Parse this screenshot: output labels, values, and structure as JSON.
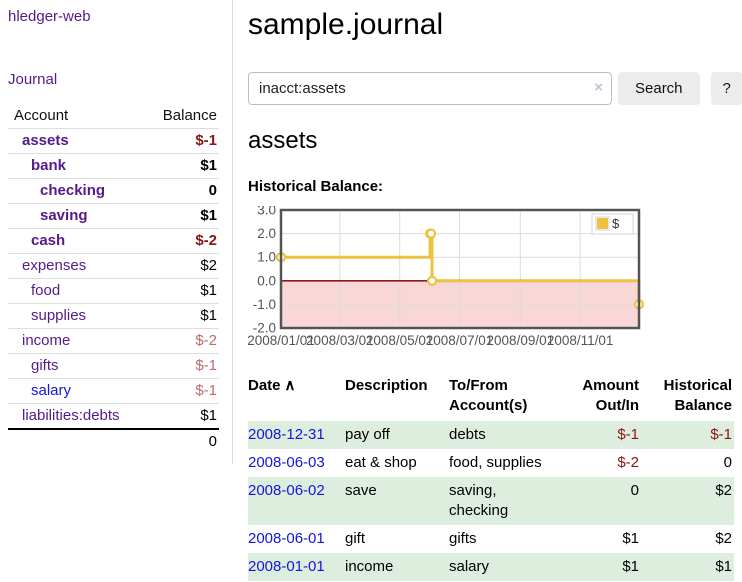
{
  "app": {
    "brand": "hledger-web",
    "nav_journal": "Journal"
  },
  "sidebar": {
    "columns": {
      "account": "Account",
      "balance": "Balance"
    },
    "accounts": [
      {
        "name": "assets",
        "level": 1,
        "bold": true,
        "name_color": "purple",
        "balance": "$-1",
        "balance_color": "neg-strong"
      },
      {
        "name": "bank",
        "level": 2,
        "bold": true,
        "name_color": "purple",
        "balance": "$1",
        "balance_color": "black"
      },
      {
        "name": "checking",
        "level": 3,
        "bold": true,
        "name_color": "purple",
        "balance": "0",
        "balance_color": "black"
      },
      {
        "name": "saving",
        "level": 3,
        "bold": true,
        "name_color": "purple",
        "balance": "$1",
        "balance_color": "black"
      },
      {
        "name": "cash",
        "level": 2,
        "bold": true,
        "name_color": "purple",
        "balance": "$-2",
        "balance_color": "neg-strong"
      },
      {
        "name": "expenses",
        "level": 1,
        "bold": false,
        "name_color": "purple",
        "balance": "$2",
        "balance_color": "black"
      },
      {
        "name": "food",
        "level": 2,
        "bold": false,
        "name_color": "purple",
        "balance": "$1",
        "balance_color": "black"
      },
      {
        "name": "supplies",
        "level": 2,
        "bold": false,
        "name_color": "purple",
        "balance": "$1",
        "balance_color": "black"
      },
      {
        "name": "income",
        "level": 1,
        "bold": false,
        "name_color": "purple",
        "balance": "$-2",
        "balance_color": "neg-muted"
      },
      {
        "name": "gifts",
        "level": 2,
        "bold": false,
        "name_color": "purple",
        "balance": "$-1",
        "balance_color": "neg-muted"
      },
      {
        "name": "salary",
        "level": 2,
        "bold": false,
        "name_color": "blue",
        "balance": "$-1",
        "balance_color": "neg-muted"
      },
      {
        "name": "liabilities:debts",
        "level": 1,
        "bold": false,
        "name_color": "purple",
        "balance": "$1",
        "balance_color": "black"
      }
    ],
    "total": "0"
  },
  "header": {
    "title": "sample.journal"
  },
  "search": {
    "value": "inacct:assets",
    "clear_icon": "×",
    "button": "Search",
    "help_button": "?"
  },
  "account_page": {
    "heading": "assets",
    "chart_label": "Historical Balance:"
  },
  "chart_data": {
    "type": "line",
    "style": "step",
    "legend": "$",
    "legend_position": "top-right",
    "series": [
      {
        "name": "$",
        "color": "#edc240",
        "points": [
          [
            "2008-01-01",
            1
          ],
          [
            "2008-06-01",
            2
          ],
          [
            "2008-06-02",
            2
          ],
          [
            "2008-06-03",
            0
          ],
          [
            "2008-12-31",
            -1
          ]
        ]
      }
    ],
    "ylim": [
      -2,
      3
    ],
    "yticks": [
      "3.0",
      "2.0",
      "1.0",
      "0.0",
      "-1.0",
      "-2.0"
    ],
    "xticks": [
      "2008/01/01",
      "2008/03/01",
      "2008/05/01",
      "2008/07/01",
      "2008/09/01",
      "2008/11/01"
    ],
    "grid": true,
    "colors": {
      "border": "#545454",
      "gridline": "#dcdcdc",
      "tick_text": "#545454",
      "negative_region": "#f9d7d7",
      "zero_line": "#8b1a1a",
      "marker_fill": "#ffffff"
    }
  },
  "register": {
    "columns": [
      {
        "label": "Date",
        "sort_icon": "∧",
        "align": "left"
      },
      {
        "label": "Description",
        "align": "left"
      },
      {
        "label": "To/From Account(s)",
        "align": "left"
      },
      {
        "label": "Amount Out/In",
        "align": "right"
      },
      {
        "label": "Historical Balance",
        "align": "right"
      }
    ],
    "rows": [
      {
        "date": "2008-12-31",
        "description": "pay off",
        "accounts": [
          "debts"
        ],
        "amount": "$-1",
        "amount_color": "neg-strong",
        "balance": "$-1",
        "balance_color": "neg-strong",
        "shaded": true
      },
      {
        "date": "2008-06-03",
        "description": "eat & shop",
        "accounts": [
          "food, supplies"
        ],
        "amount": "$-2",
        "amount_color": "neg-strong",
        "balance": "0",
        "balance_color": "black",
        "shaded": false
      },
      {
        "date": "2008-06-02",
        "description": "save",
        "accounts": [
          "saving,",
          "checking"
        ],
        "amount": "0",
        "amount_color": "black",
        "balance": "$2",
        "balance_color": "black",
        "shaded": true
      },
      {
        "date": "2008-06-01",
        "description": "gift",
        "accounts": [
          "gifts"
        ],
        "amount": "$1",
        "amount_color": "black",
        "balance": "$2",
        "balance_color": "black",
        "shaded": false
      },
      {
        "date": "2008-01-01",
        "description": "income",
        "accounts": [
          "salary"
        ],
        "amount": "$1",
        "amount_color": "black",
        "balance": "$1",
        "balance_color": "black",
        "shaded": true
      }
    ]
  }
}
